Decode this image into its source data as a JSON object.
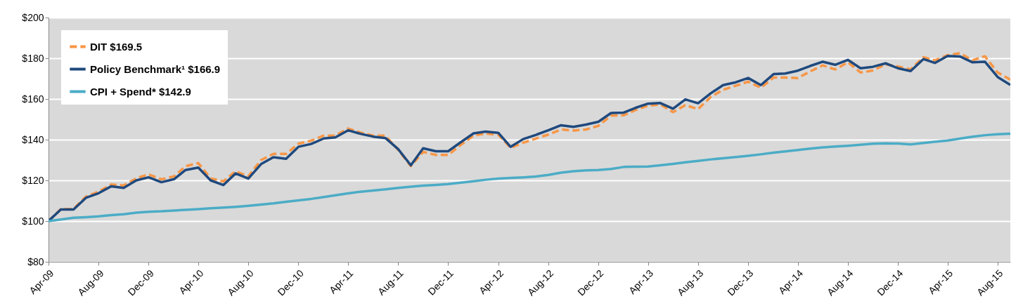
{
  "chart_data": {
    "type": "line",
    "x": [
      "2009-04",
      "2009-05",
      "2009-06",
      "2009-07",
      "2009-08",
      "2009-09",
      "2009-10",
      "2009-11",
      "2009-12",
      "2010-01",
      "2010-02",
      "2010-03",
      "2010-04",
      "2010-05",
      "2010-06",
      "2010-07",
      "2010-08",
      "2010-09",
      "2010-10",
      "2010-11",
      "2010-12",
      "2011-01",
      "2011-02",
      "2011-03",
      "2011-04",
      "2011-05",
      "2011-06",
      "2011-07",
      "2011-08",
      "2011-09",
      "2011-10",
      "2011-11",
      "2011-12",
      "2012-01",
      "2012-02",
      "2012-03",
      "2012-04",
      "2012-05",
      "2012-06",
      "2012-07",
      "2012-08",
      "2012-09",
      "2012-10",
      "2012-11",
      "2012-12",
      "2013-01",
      "2013-02",
      "2013-03",
      "2013-04",
      "2013-05",
      "2013-06",
      "2013-07",
      "2013-08",
      "2013-09",
      "2013-10",
      "2013-11",
      "2013-12",
      "2014-01",
      "2014-02",
      "2014-03",
      "2014-04",
      "2014-05",
      "2014-06",
      "2014-07",
      "2014-08",
      "2014-09",
      "2014-10",
      "2014-11",
      "2014-12",
      "2015-01",
      "2015-02",
      "2015-03",
      "2015-04",
      "2015-05",
      "2015-06",
      "2015-07",
      "2015-08",
      "2015-09"
    ],
    "series": [
      {
        "name": "DIT $169.5",
        "color": "#f79646",
        "line_style": "dashed",
        "values": [
          100,
          105.9,
          106,
          112,
          114.5,
          118,
          117.5,
          121,
          123,
          120.5,
          122,
          127,
          128.5,
          121,
          119.5,
          124.5,
          122,
          130,
          133,
          133,
          138,
          139.5,
          142,
          142,
          145.5,
          143.5,
          142,
          142,
          135,
          127,
          134,
          132.5,
          132.5,
          137.5,
          142,
          143,
          142.5,
          136,
          138.5,
          140.5,
          142.5,
          145,
          144.5,
          145,
          146.8,
          151.8,
          152,
          154.5,
          156.7,
          157.3,
          153.5,
          157,
          155,
          161,
          164.5,
          166.5,
          168.5,
          165.5,
          170.5,
          170.5,
          170.3,
          173.5,
          176.5,
          174.5,
          178,
          173,
          174,
          177,
          176,
          174.5,
          180.5,
          179,
          181.5,
          182.5,
          179,
          181,
          173,
          169.5
        ]
      },
      {
        "name": "Policy Benchmark¹ $166.9",
        "color": "#1f497d",
        "line_style": "solid",
        "values": [
          100,
          105.7,
          105.7,
          111.4,
          113.7,
          117.1,
          116.3,
          120.0,
          121.5,
          119.1,
          120.6,
          125.1,
          126.3,
          120.0,
          117.7,
          123.4,
          120.9,
          128.0,
          131.4,
          130.6,
          136.5,
          137.9,
          140.6,
          141.1,
          144.6,
          142.9,
          141.5,
          140.8,
          135.4,
          127.4,
          135.8,
          134.3,
          134.3,
          138.8,
          143.1,
          144.0,
          143.4,
          136.5,
          140.3,
          142.3,
          144.6,
          147.1,
          146.3,
          147.4,
          148.8,
          153.1,
          153.3,
          155.6,
          157.7,
          158.0,
          155.2,
          159.8,
          157.9,
          162.8,
          166.8,
          168.2,
          170.3,
          166.8,
          172.2,
          172.5,
          173.9,
          176.2,
          178.3,
          176.8,
          179.2,
          175.1,
          175.8,
          177.5,
          175.1,
          173.7,
          179.6,
          177.7,
          181.1,
          180.9,
          178.0,
          178.3,
          170.8,
          166.9
        ]
      },
      {
        "name": "CPI + Spend* $142.9",
        "color": "#4bacc6",
        "line_style": "solid",
        "values": [
          100,
          100.8,
          101.6,
          101.9,
          102.3,
          102.9,
          103.4,
          104.1,
          104.6,
          104.8,
          105.2,
          105.5,
          105.9,
          106.3,
          106.6,
          107.0,
          107.5,
          108.1,
          108.7,
          109.5,
          110.2,
          110.9,
          111.8,
          112.7,
          113.6,
          114.4,
          115.0,
          115.6,
          116.3,
          116.9,
          117.4,
          117.8,
          118.2,
          118.9,
          119.6,
          120.3,
          120.9,
          121.2,
          121.5,
          121.9,
          122.7,
          123.8,
          124.5,
          124.9,
          125.1,
          125.6,
          126.6,
          126.7,
          126.8,
          127.4,
          128.1,
          128.9,
          129.6,
          130.3,
          130.9,
          131.5,
          132.1,
          132.8,
          133.6,
          134.2,
          134.9,
          135.6,
          136.2,
          136.6,
          137.0,
          137.5,
          138.0,
          138.2,
          138.1,
          137.7,
          138.4,
          139.0,
          139.6,
          140.5,
          141.5,
          142.2,
          142.7,
          142.9
        ]
      }
    ],
    "xlim": [
      "2009-04",
      "2015-09"
    ],
    "xticks": [
      {
        "value": "2009-04",
        "label": "Apr-09"
      },
      {
        "value": "2009-08",
        "label": "Aug-09"
      },
      {
        "value": "2009-12",
        "label": "Dec-09"
      },
      {
        "value": "2010-04",
        "label": "Apr-10"
      },
      {
        "value": "2010-08",
        "label": "Aug-10"
      },
      {
        "value": "2010-12",
        "label": "Dec-10"
      },
      {
        "value": "2011-04",
        "label": "Apr-11"
      },
      {
        "value": "2011-08",
        "label": "Aug-11"
      },
      {
        "value": "2011-12",
        "label": "Dec-11"
      },
      {
        "value": "2012-04",
        "label": "Apr-12"
      },
      {
        "value": "2012-08",
        "label": "Aug-12"
      },
      {
        "value": "2012-12",
        "label": "Dec-12"
      },
      {
        "value": "2013-04",
        "label": "Apr-13"
      },
      {
        "value": "2013-08",
        "label": "Aug-13"
      },
      {
        "value": "2013-12",
        "label": "Dec-13"
      },
      {
        "value": "2014-04",
        "label": "Apr-14"
      },
      {
        "value": "2014-08",
        "label": "Aug-14"
      },
      {
        "value": "2014-12",
        "label": "Dec-14"
      },
      {
        "value": "2015-04",
        "label": "Apr-15"
      },
      {
        "value": "2015-08",
        "label": "Aug-15"
      }
    ],
    "ylim": [
      80,
      200
    ],
    "yticks": [
      {
        "value": 80,
        "label": "$80"
      },
      {
        "value": 100,
        "label": "$100"
      },
      {
        "value": 120,
        "label": "$120"
      },
      {
        "value": 140,
        "label": "$140"
      },
      {
        "value": 160,
        "label": "$160"
      },
      {
        "value": 180,
        "label": "$180"
      },
      {
        "value": 200,
        "label": "$200"
      }
    ],
    "grid": "y",
    "legend": "top left"
  }
}
